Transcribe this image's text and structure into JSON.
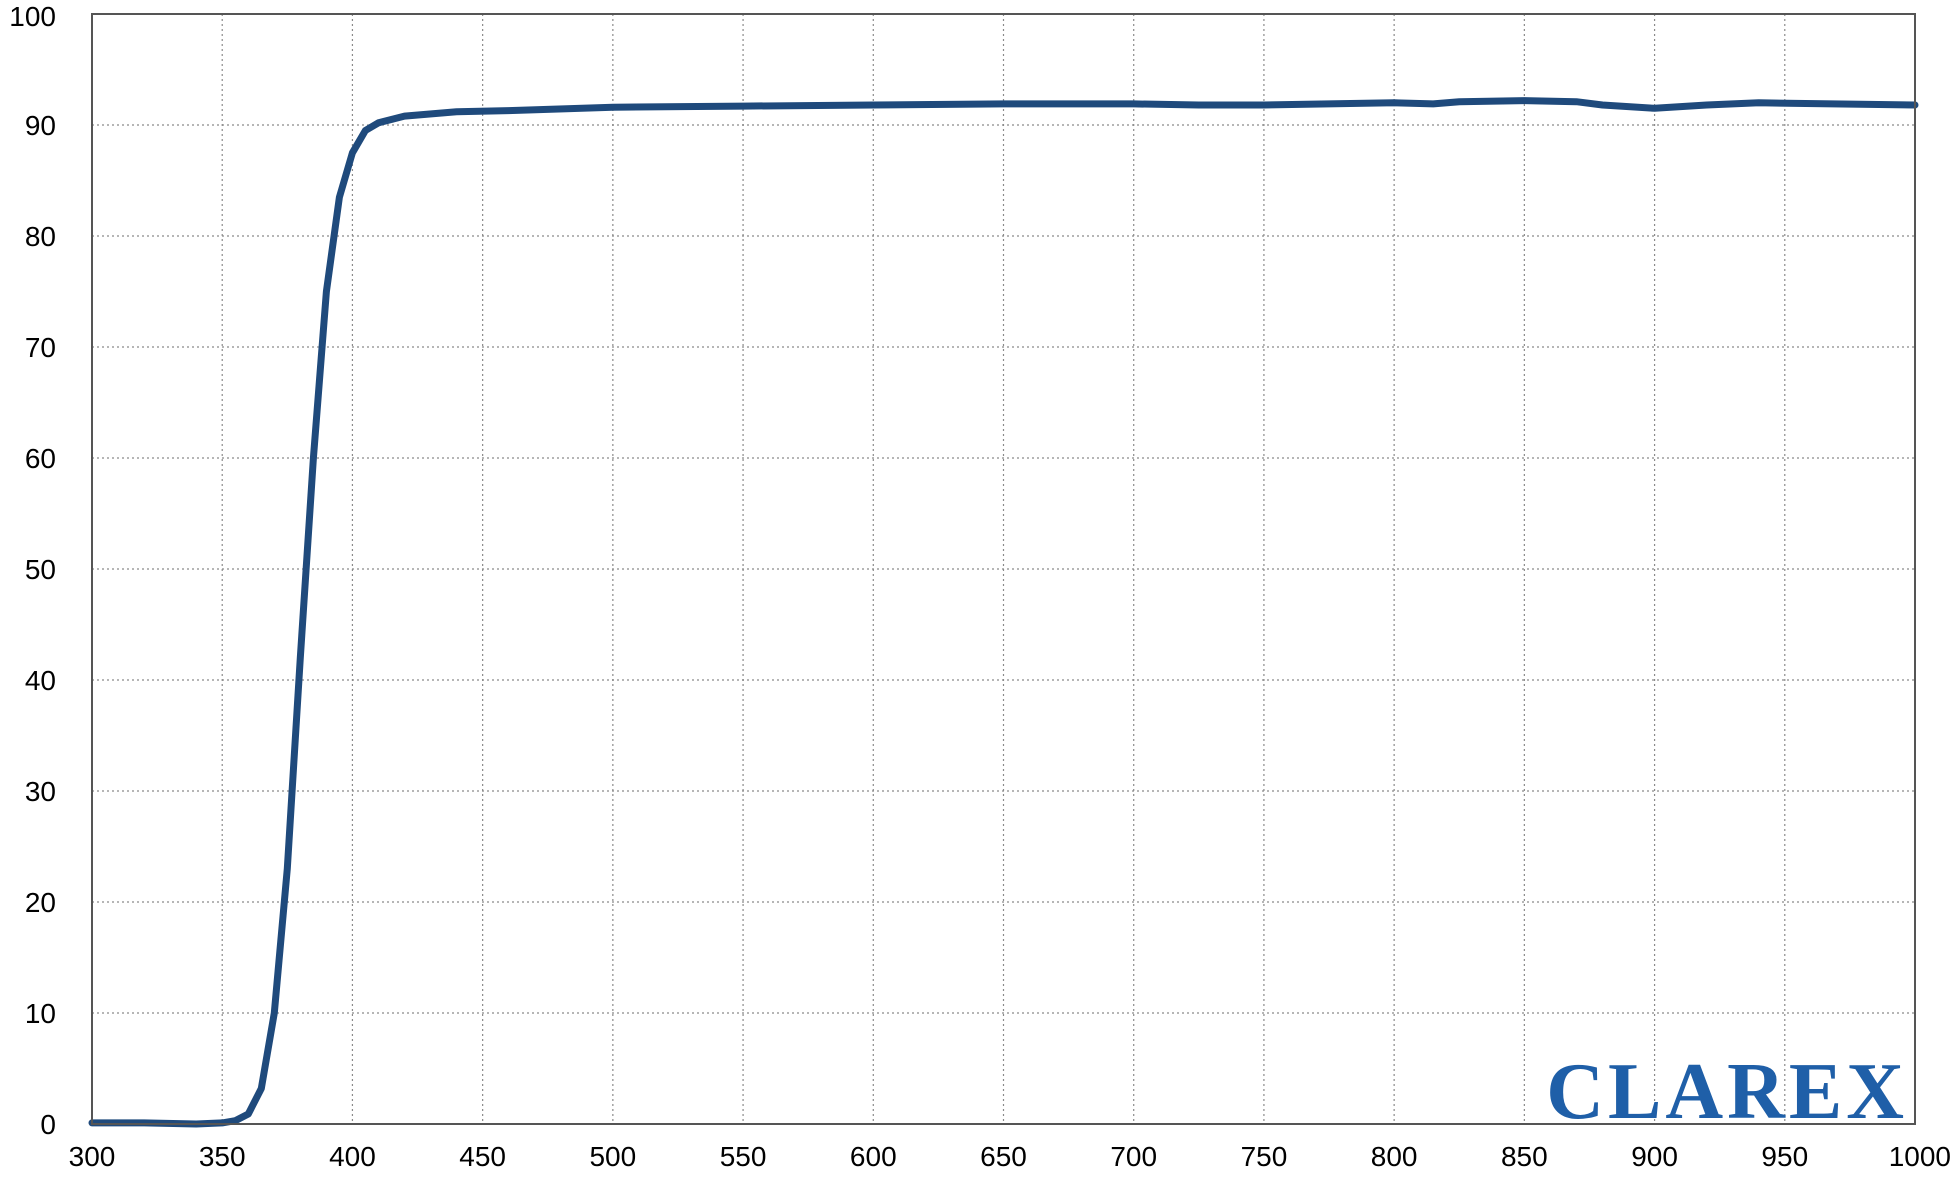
{
  "chart_data": {
    "type": "line",
    "title": "",
    "xlabel": "",
    "ylabel": "",
    "xlim": [
      300,
      1000
    ],
    "ylim": [
      0,
      100
    ],
    "grid": true,
    "x_ticks": [
      "300",
      "350",
      "400",
      "450",
      "500",
      "550",
      "600",
      "650",
      "700",
      "750",
      "800",
      "850",
      "900",
      "950",
      "1000"
    ],
    "y_ticks": [
      "0",
      "10",
      "20",
      "30",
      "40",
      "50",
      "60",
      "70",
      "80",
      "90",
      "100"
    ],
    "series": [
      {
        "color": "#1f4a7c",
        "x": [
          300,
          320,
          340,
          350,
          355,
          360,
          365,
          370,
          375,
          380,
          385,
          390,
          395,
          400,
          405,
          410,
          420,
          440,
          460,
          500,
          550,
          600,
          650,
          700,
          725,
          750,
          800,
          815,
          825,
          850,
          870,
          880,
          900,
          920,
          940,
          1000
        ],
        "y": [
          0.1,
          0.1,
          0.0,
          0.1,
          0.3,
          0.9,
          3.2,
          10.0,
          23.0,
          42.0,
          60.0,
          75.0,
          83.5,
          87.5,
          89.5,
          90.2,
          90.8,
          91.2,
          91.3,
          91.6,
          91.7,
          91.8,
          91.9,
          91.9,
          91.8,
          91.8,
          92.0,
          91.9,
          92.1,
          92.2,
          92.1,
          91.8,
          91.5,
          91.8,
          92.0,
          91.8
        ]
      }
    ]
  },
  "watermark": {
    "text": "CLAREX",
    "color": "#1f5fa8"
  }
}
